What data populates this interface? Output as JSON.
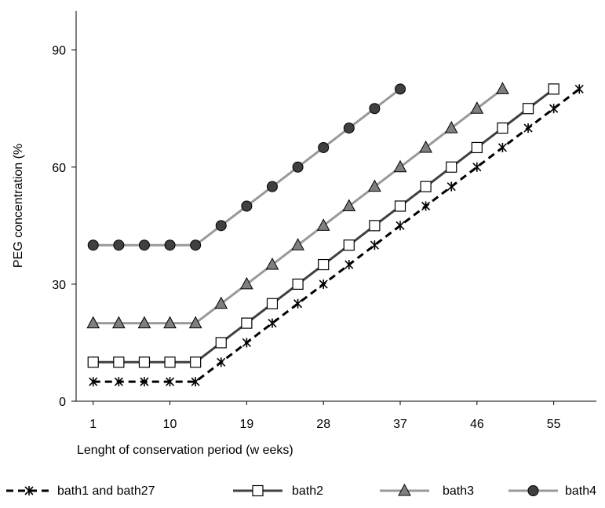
{
  "chart_data": {
    "type": "line",
    "xlabel": "Lenght of conservation period (w eeks)",
    "ylabel": "PEG concentration (%",
    "x": [
      1,
      4,
      7,
      10,
      13,
      16,
      19,
      22,
      25,
      28,
      31,
      34,
      37,
      40,
      43,
      46,
      49,
      52,
      55,
      58
    ],
    "x_tick_labels": [
      "1",
      "10",
      "19",
      "28",
      "37",
      "46",
      "55"
    ],
    "x_tick_values": [
      1,
      10,
      19,
      28,
      37,
      46,
      55
    ],
    "y_ticks": [
      0,
      30,
      60,
      90
    ],
    "xlim": [
      -1,
      60
    ],
    "ylim": [
      0,
      100
    ],
    "grid": false,
    "legend_position": "bottom",
    "series": [
      {
        "name": "bath1 and bath27",
        "marker": "asterisk",
        "color": "#000000",
        "dashed": true,
        "values": [
          5,
          5,
          5,
          5,
          5,
          10,
          15,
          20,
          25,
          30,
          35,
          40,
          45,
          50,
          55,
          60,
          65,
          70,
          75,
          80
        ]
      },
      {
        "name": "bath2",
        "marker": "square",
        "color": "#404040",
        "dashed": false,
        "values": [
          10,
          10,
          10,
          10,
          10,
          15,
          20,
          25,
          30,
          35,
          40,
          45,
          50,
          55,
          60,
          65,
          70,
          75,
          80,
          null
        ]
      },
      {
        "name": "bath3",
        "marker": "triangle",
        "color": "#999999",
        "dashed": false,
        "values": [
          20,
          20,
          20,
          20,
          20,
          25,
          30,
          35,
          40,
          45,
          50,
          55,
          60,
          65,
          70,
          75,
          80,
          null,
          null,
          null
        ]
      },
      {
        "name": "bath4",
        "marker": "circle",
        "color": "#999999",
        "dashed": false,
        "values": [
          40,
          40,
          40,
          40,
          40,
          45,
          50,
          55,
          60,
          65,
          70,
          75,
          80,
          null,
          null,
          null,
          null,
          null,
          null,
          null
        ]
      }
    ]
  }
}
